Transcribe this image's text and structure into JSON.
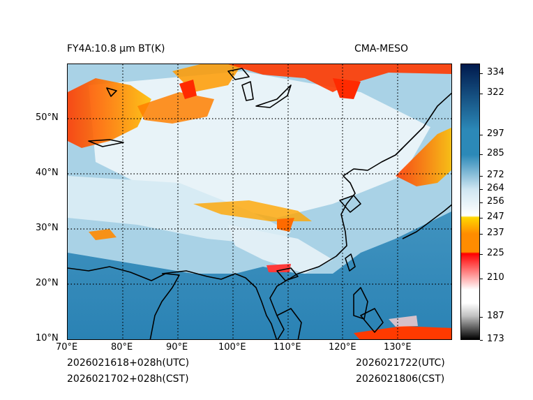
{
  "title_left": "FY4A:10.8 µm BT(K)",
  "title_right": "CMA-MESO",
  "footer": {
    "utc_left": "2026021618+028h(UTC)",
    "cst_left": "2026021702+028h(CST)",
    "utc_right": "2026021722(UTC)",
    "cst_right": "2026021806(CST)"
  },
  "lon_labels": [
    "70°E",
    "80°E",
    "90°E",
    "100°E",
    "110°E",
    "120°E",
    "130°E"
  ],
  "lat_labels": [
    "10°N",
    "20°N",
    "30°N",
    "40°N",
    "50°N"
  ],
  "colorbar": {
    "min": 173,
    "max": 340,
    "ticks": [
      "173",
      "187",
      "210",
      "225",
      "237",
      "247",
      "256",
      "264",
      "272",
      "285",
      "297",
      "322",
      "334"
    ],
    "colors": {
      "black": "#000000",
      "gray": "#bfbfbf",
      "white": "#ffffff",
      "red": "#ff0000",
      "orange": "#ff8c00",
      "yellow": "#ffd700",
      "lightblue": "#cfe6f2",
      "blue": "#2c89b8",
      "navy": "#001a4d"
    }
  }
}
